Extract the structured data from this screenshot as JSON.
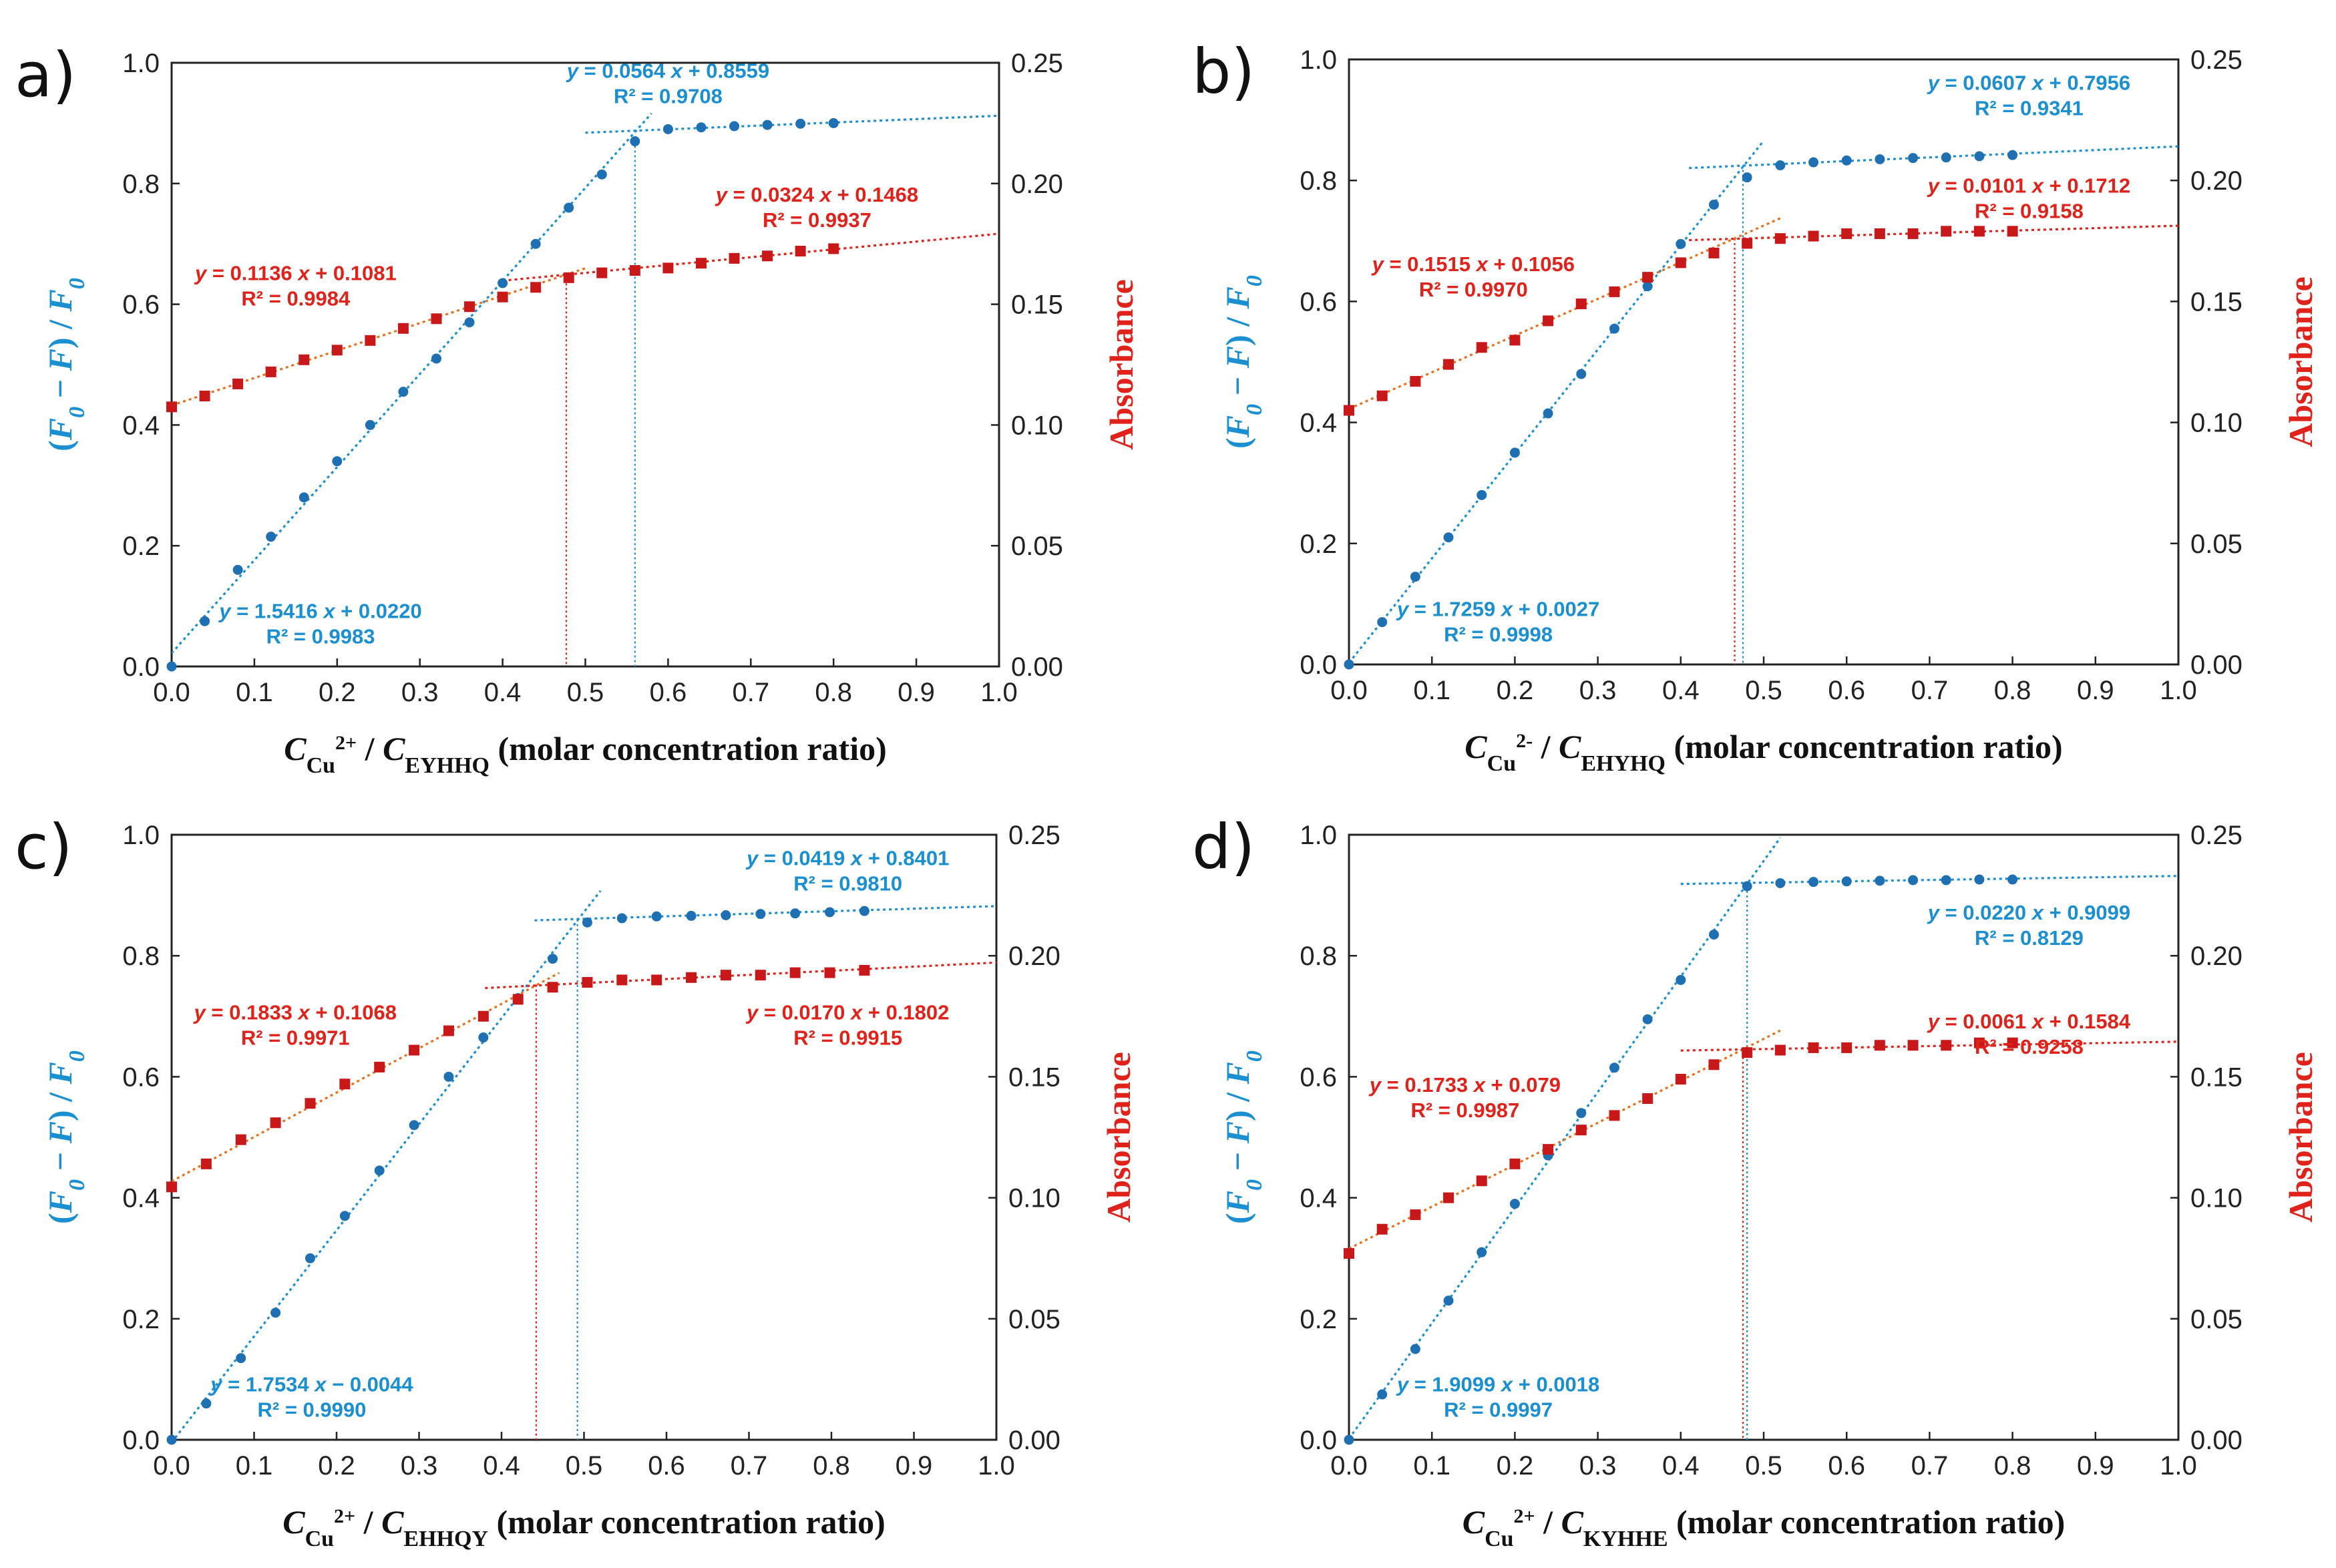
{
  "colors": {
    "blue": "#1a8fd1",
    "blue_dot": "#1f6fb3",
    "red": "#e0221b",
    "red_sq": "#c8181a",
    "orange_fit": "#e8701a",
    "axis": "#222222"
  },
  "chart_data": [
    {
      "type": "scatter",
      "panel_label": "a)",
      "xlabel": {
        "main": "C",
        "cu_sub": "Cu",
        "cu_sup": "2+",
        "slash": " / C",
        "peptide_sub": "EYHHQ",
        "tail": " (molar concentration ratio)"
      },
      "ylabel_left": "(F0 − F) / F0",
      "ylabel_right": "Absorbance",
      "xlim": [
        0,
        1.0
      ],
      "ylim_left": [
        0,
        1.0
      ],
      "ylim_right": [
        0,
        0.25
      ],
      "x_ticks": [
        "0.0",
        "0.1",
        "0.2",
        "0.3",
        "0.4",
        "0.5",
        "0.6",
        "0.7",
        "0.8",
        "0.9",
        "1.0"
      ],
      "y_left_ticks": [
        "0.0",
        "0.2",
        "0.4",
        "0.6",
        "0.8",
        "1.0"
      ],
      "y_right_ticks": [
        "0.00",
        "0.05",
        "0.10",
        "0.15",
        "0.20",
        "0.25"
      ],
      "series": [
        {
          "axis": "left",
          "x": [
            0,
            0.04,
            0.08,
            0.12,
            0.16,
            0.2,
            0.24,
            0.28,
            0.32,
            0.36,
            0.4,
            0.44,
            0.48,
            0.52,
            0.56,
            0.6,
            0.64,
            0.68,
            0.72,
            0.76,
            0.8
          ],
          "y": [
            0,
            0.075,
            0.16,
            0.215,
            0.28,
            0.34,
            0.4,
            0.455,
            0.51,
            0.57,
            0.635,
            0.7,
            0.76,
            0.815,
            0.87,
            0.89,
            0.893,
            0.895,
            0.897,
            0.899,
            0.9
          ]
        },
        {
          "axis": "right",
          "x": [
            0,
            0.04,
            0.08,
            0.12,
            0.16,
            0.2,
            0.24,
            0.28,
            0.32,
            0.36,
            0.4,
            0.44,
            0.48,
            0.52,
            0.56,
            0.6,
            0.64,
            0.68,
            0.72,
            0.76,
            0.8
          ],
          "y": [
            0.1075,
            0.112,
            0.117,
            0.122,
            0.127,
            0.131,
            0.135,
            0.14,
            0.144,
            0.149,
            0.153,
            0.157,
            0.161,
            0.163,
            0.164,
            0.165,
            0.167,
            0.169,
            0.17,
            0.172,
            0.173
          ]
        }
      ],
      "fits": [
        {
          "axis": "left",
          "slope": 1.5416,
          "intercept": 0.022,
          "x_range": [
            0,
            0.58
          ],
          "color": "blue"
        },
        {
          "axis": "left",
          "slope": 0.0564,
          "intercept": 0.8559,
          "x_range": [
            0.5,
            1.0
          ],
          "color": "blue"
        },
        {
          "axis": "right",
          "slope": 0.1136,
          "intercept": 0.1081,
          "x_range": [
            0,
            0.5
          ],
          "color": "orange"
        },
        {
          "axis": "right",
          "slope": 0.0324,
          "intercept": 0.1468,
          "x_range": [
            0.4,
            1.0
          ],
          "color": "red"
        }
      ],
      "intersections": [
        {
          "axis": "left",
          "x": 0.56,
          "y": 0.87,
          "color": "blue"
        },
        {
          "axis": "right",
          "x": 0.477,
          "y": 0.1625,
          "color": "red"
        }
      ],
      "annotations": [
        {
          "line1": "y = 1.5416 x + 0.0220",
          "line2": "R² = 0.9983",
          "color": "blue",
          "at": [
            0.18,
            0.08
          ]
        },
        {
          "line1": "y = 0.0564 x + 0.8559",
          "line2": "R² = 0.9708",
          "color": "blue",
          "at": [
            0.6,
            0.975
          ]
        },
        {
          "line1": "y = 0.1136 x + 0.1081",
          "line2": "R² = 0.9984",
          "color": "red",
          "at": [
            0.15,
            0.64
          ]
        },
        {
          "line1": "y = 0.0324 x + 0.1468",
          "line2": "R² = 0.9937",
          "color": "red",
          "at": [
            0.78,
            0.77
          ]
        }
      ]
    },
    {
      "type": "scatter",
      "panel_label": "b)",
      "xlabel": {
        "main": "C",
        "cu_sub": "Cu",
        "cu_sup": "2-",
        "slash": " / C",
        "peptide_sub": "EHYHQ",
        "tail": " (molar concentration ratio)"
      },
      "ylabel_left": "(F0 − F) / F0",
      "ylabel_right": "Absorbance",
      "xlim": [
        0,
        1.0
      ],
      "ylim_left": [
        0,
        1.0
      ],
      "ylim_right": [
        0,
        0.25
      ],
      "x_ticks": [
        "0.0",
        "0.1",
        "0.2",
        "0.3",
        "0.4",
        "0.5",
        "0.6",
        "0.7",
        "0.8",
        "0.9",
        "1.0"
      ],
      "y_left_ticks": [
        "0.0",
        "0.2",
        "0.4",
        "0.6",
        "0.8",
        "1.0"
      ],
      "y_right_ticks": [
        "0.00",
        "0.05",
        "0.10",
        "0.15",
        "0.20",
        "0.25"
      ],
      "series": [
        {
          "axis": "left",
          "x": [
            0,
            0.04,
            0.08,
            0.12,
            0.16,
            0.2,
            0.24,
            0.28,
            0.32,
            0.36,
            0.4,
            0.44,
            0.48,
            0.52,
            0.56,
            0.6,
            0.64,
            0.68,
            0.72,
            0.76,
            0.8
          ],
          "y": [
            0,
            0.07,
            0.145,
            0.21,
            0.28,
            0.35,
            0.415,
            0.48,
            0.555,
            0.625,
            0.695,
            0.76,
            0.805,
            0.825,
            0.83,
            0.833,
            0.835,
            0.837,
            0.838,
            0.84,
            0.842
          ]
        },
        {
          "axis": "right",
          "x": [
            0,
            0.04,
            0.08,
            0.12,
            0.16,
            0.2,
            0.24,
            0.28,
            0.32,
            0.36,
            0.4,
            0.44,
            0.48,
            0.52,
            0.56,
            0.6,
            0.64,
            0.68,
            0.72,
            0.76,
            0.8
          ],
          "y": [
            0.105,
            0.111,
            0.117,
            0.124,
            0.131,
            0.134,
            0.142,
            0.149,
            0.154,
            0.16,
            0.166,
            0.17,
            0.174,
            0.176,
            0.177,
            0.178,
            0.178,
            0.178,
            0.179,
            0.179,
            0.179
          ]
        }
      ],
      "fits": [
        {
          "axis": "left",
          "slope": 1.7259,
          "intercept": 0.0027,
          "x_range": [
            0,
            0.5
          ],
          "color": "blue"
        },
        {
          "axis": "left",
          "slope": 0.0607,
          "intercept": 0.7956,
          "x_range": [
            0.41,
            1.0
          ],
          "color": "blue"
        },
        {
          "axis": "right",
          "slope": 0.1515,
          "intercept": 0.1056,
          "x_range": [
            0,
            0.52
          ],
          "color": "orange"
        },
        {
          "axis": "right",
          "slope": 0.0101,
          "intercept": 0.1712,
          "x_range": [
            0.41,
            1.0
          ],
          "color": "red"
        }
      ],
      "intersections": [
        {
          "axis": "left",
          "x": 0.475,
          "y": 0.825,
          "color": "blue"
        },
        {
          "axis": "right",
          "x": 0.465,
          "y": 0.176,
          "color": "red"
        }
      ],
      "annotations": [
        {
          "line1": "y = 1.7259 x + 0.0027",
          "line2": "R² = 0.9998",
          "color": "blue",
          "at": [
            0.18,
            0.08
          ]
        },
        {
          "line1": "y = 0.0607 x + 0.7956",
          "line2": "R² = 0.9341",
          "color": "blue",
          "at": [
            0.82,
            0.95
          ]
        },
        {
          "line1": "y = 0.1515 x + 0.1056",
          "line2": "R² = 0.9970",
          "color": "red",
          "at": [
            0.15,
            0.65
          ]
        },
        {
          "line1": "y = 0.0101 x + 0.1712",
          "line2": "R² = 0.9158",
          "color": "red",
          "at": [
            0.82,
            0.78
          ]
        }
      ]
    },
    {
      "type": "scatter",
      "panel_label": "c)",
      "xlabel": {
        "main": "C",
        "cu_sub": "Cu",
        "cu_sup": "2+",
        "slash": " / C",
        "peptide_sub": "EHHQY",
        "tail": " (molar concentration ratio)"
      },
      "ylabel_left": "(F0 − F) / F0",
      "ylabel_right": "Absorbance",
      "xlim": [
        0,
        1.0
      ],
      "ylim_left": [
        0,
        1.0
      ],
      "ylim_right": [
        0,
        0.25
      ],
      "x_ticks": [
        "0.0",
        "0.1",
        "0.2",
        "0.3",
        "0.4",
        "0.5",
        "0.6",
        "0.7",
        "0.8",
        "0.9",
        "1.0"
      ],
      "y_left_ticks": [
        "0.0",
        "0.2",
        "0.4",
        "0.6",
        "0.8",
        "1.0"
      ],
      "y_right_ticks": [
        "0.00",
        "0.05",
        "0.10",
        "0.15",
        "0.20",
        "0.25"
      ],
      "series": [
        {
          "axis": "left",
          "x": [
            0,
            0.042,
            0.084,
            0.126,
            0.168,
            0.21,
            0.252,
            0.294,
            0.336,
            0.378,
            0.42,
            0.462,
            0.504,
            0.546,
            0.588,
            0.63,
            0.672,
            0.714,
            0.756,
            0.798,
            0.84
          ],
          "y": [
            0,
            0.06,
            0.135,
            0.21,
            0.3,
            0.37,
            0.445,
            0.52,
            0.6,
            0.665,
            0.73,
            0.795,
            0.855,
            0.862,
            0.865,
            0.866,
            0.867,
            0.869,
            0.87,
            0.872,
            0.874
          ]
        },
        {
          "axis": "right",
          "x": [
            0,
            0.042,
            0.084,
            0.126,
            0.168,
            0.21,
            0.252,
            0.294,
            0.336,
            0.378,
            0.42,
            0.462,
            0.504,
            0.546,
            0.588,
            0.63,
            0.672,
            0.714,
            0.756,
            0.798,
            0.84
          ],
          "y": [
            0.1045,
            0.114,
            0.124,
            0.131,
            0.139,
            0.147,
            0.154,
            0.161,
            0.169,
            0.175,
            0.182,
            0.187,
            0.189,
            0.19,
            0.19,
            0.191,
            0.192,
            0.192,
            0.193,
            0.193,
            0.194
          ]
        }
      ],
      "fits": [
        {
          "axis": "left",
          "slope": 1.7534,
          "intercept": -0.0044,
          "x_range": [
            0,
            0.52
          ],
          "color": "blue"
        },
        {
          "axis": "left",
          "slope": 0.0419,
          "intercept": 0.8401,
          "x_range": [
            0.44,
            1.0
          ],
          "color": "blue"
        },
        {
          "axis": "right",
          "slope": 0.1833,
          "intercept": 0.1068,
          "x_range": [
            0,
            0.47
          ],
          "color": "orange"
        },
        {
          "axis": "right",
          "slope": 0.017,
          "intercept": 0.1802,
          "x_range": [
            0.38,
            1.0
          ],
          "color": "red"
        }
      ],
      "intersections": [
        {
          "axis": "left",
          "x": 0.492,
          "y": 0.86,
          "color": "blue"
        },
        {
          "axis": "right",
          "x": 0.442,
          "y": 0.188,
          "color": "red"
        }
      ],
      "annotations": [
        {
          "line1": "y = 1.7534 x − 0.0044",
          "line2": "R² = 0.9990",
          "color": "blue",
          "at": [
            0.17,
            0.08
          ]
        },
        {
          "line1": "y = 0.0419 x + 0.8401",
          "line2": "R² = 0.9810",
          "color": "blue",
          "at": [
            0.82,
            0.95
          ]
        },
        {
          "line1": "y = 0.1833 x + 0.1068",
          "line2": "R² = 0.9971",
          "color": "red",
          "at": [
            0.15,
            0.695
          ]
        },
        {
          "line1": "y = 0.0170 x + 0.1802",
          "line2": "R² = 0.9915",
          "color": "red",
          "at": [
            0.82,
            0.695
          ]
        }
      ]
    },
    {
      "type": "scatter",
      "panel_label": "d)",
      "xlabel": {
        "main": "C",
        "cu_sub": "Cu",
        "cu_sup": "2+",
        "slash": " / C",
        "peptide_sub": "KYHHE",
        "tail": " (molar concentration ratio)"
      },
      "ylabel_left": "(F0 − F) / F0",
      "ylabel_right": "Absorbance",
      "xlim": [
        0,
        1.0
      ],
      "ylim_left": [
        0,
        1.0
      ],
      "ylim_right": [
        0,
        0.25
      ],
      "x_ticks": [
        "0.0",
        "0.1",
        "0.2",
        "0.3",
        "0.4",
        "0.5",
        "0.6",
        "0.7",
        "0.8",
        "0.9",
        "1.0"
      ],
      "y_left_ticks": [
        "0.0",
        "0.2",
        "0.4",
        "0.6",
        "0.8",
        "1.0"
      ],
      "y_right_ticks": [
        "0.00",
        "0.05",
        "0.10",
        "0.15",
        "0.20",
        "0.25"
      ],
      "series": [
        {
          "axis": "left",
          "x": [
            0,
            0.04,
            0.08,
            0.12,
            0.16,
            0.2,
            0.24,
            0.28,
            0.32,
            0.36,
            0.4,
            0.44,
            0.48,
            0.52,
            0.56,
            0.6,
            0.64,
            0.68,
            0.72,
            0.76,
            0.8
          ],
          "y": [
            0,
            0.075,
            0.15,
            0.23,
            0.31,
            0.39,
            0.47,
            0.54,
            0.615,
            0.695,
            0.76,
            0.835,
            0.915,
            0.92,
            0.922,
            0.923,
            0.924,
            0.925,
            0.925,
            0.926,
            0.926
          ]
        },
        {
          "axis": "right",
          "x": [
            0,
            0.04,
            0.08,
            0.12,
            0.16,
            0.2,
            0.24,
            0.28,
            0.32,
            0.36,
            0.4,
            0.44,
            0.48,
            0.52,
            0.56,
            0.6,
            0.64,
            0.68,
            0.72,
            0.76,
            0.8
          ],
          "y": [
            0.077,
            0.087,
            0.093,
            0.1,
            0.107,
            0.114,
            0.12,
            0.128,
            0.134,
            0.141,
            0.149,
            0.155,
            0.16,
            0.161,
            0.162,
            0.162,
            0.163,
            0.163,
            0.163,
            0.164,
            0.164
          ]
        }
      ],
      "fits": [
        {
          "axis": "left",
          "slope": 1.9099,
          "intercept": 0.0018,
          "x_range": [
            0,
            0.52
          ],
          "color": "blue"
        },
        {
          "axis": "left",
          "slope": 0.022,
          "intercept": 0.9099,
          "x_range": [
            0.4,
            1.0
          ],
          "color": "blue"
        },
        {
          "axis": "right",
          "slope": 0.1733,
          "intercept": 0.079,
          "x_range": [
            0,
            0.52
          ],
          "color": "orange"
        },
        {
          "axis": "right",
          "slope": 0.0061,
          "intercept": 0.1584,
          "x_range": [
            0.4,
            1.0
          ],
          "color": "red"
        }
      ],
      "intersections": [
        {
          "axis": "left",
          "x": 0.48,
          "y": 0.915,
          "color": "blue"
        },
        {
          "axis": "right",
          "x": 0.475,
          "y": 0.16,
          "color": "red"
        }
      ],
      "annotations": [
        {
          "line1": "y = 1.9099 x + 0.0018",
          "line2": "R² = 0.9997",
          "color": "blue",
          "at": [
            0.18,
            0.08
          ]
        },
        {
          "line1": "y = 0.0220 x + 0.9099",
          "line2": "R² = 0.8129",
          "color": "blue",
          "at": [
            0.82,
            0.86
          ]
        },
        {
          "line1": "y = 0.1733 x + 0.079",
          "line2": "R² = 0.9987",
          "color": "red",
          "at": [
            0.14,
            0.575
          ]
        },
        {
          "line1": "y = 0.0061 x + 0.1584",
          "line2": "R² = 0.9258",
          "color": "red",
          "at": [
            0.82,
            0.68
          ]
        }
      ]
    }
  ]
}
